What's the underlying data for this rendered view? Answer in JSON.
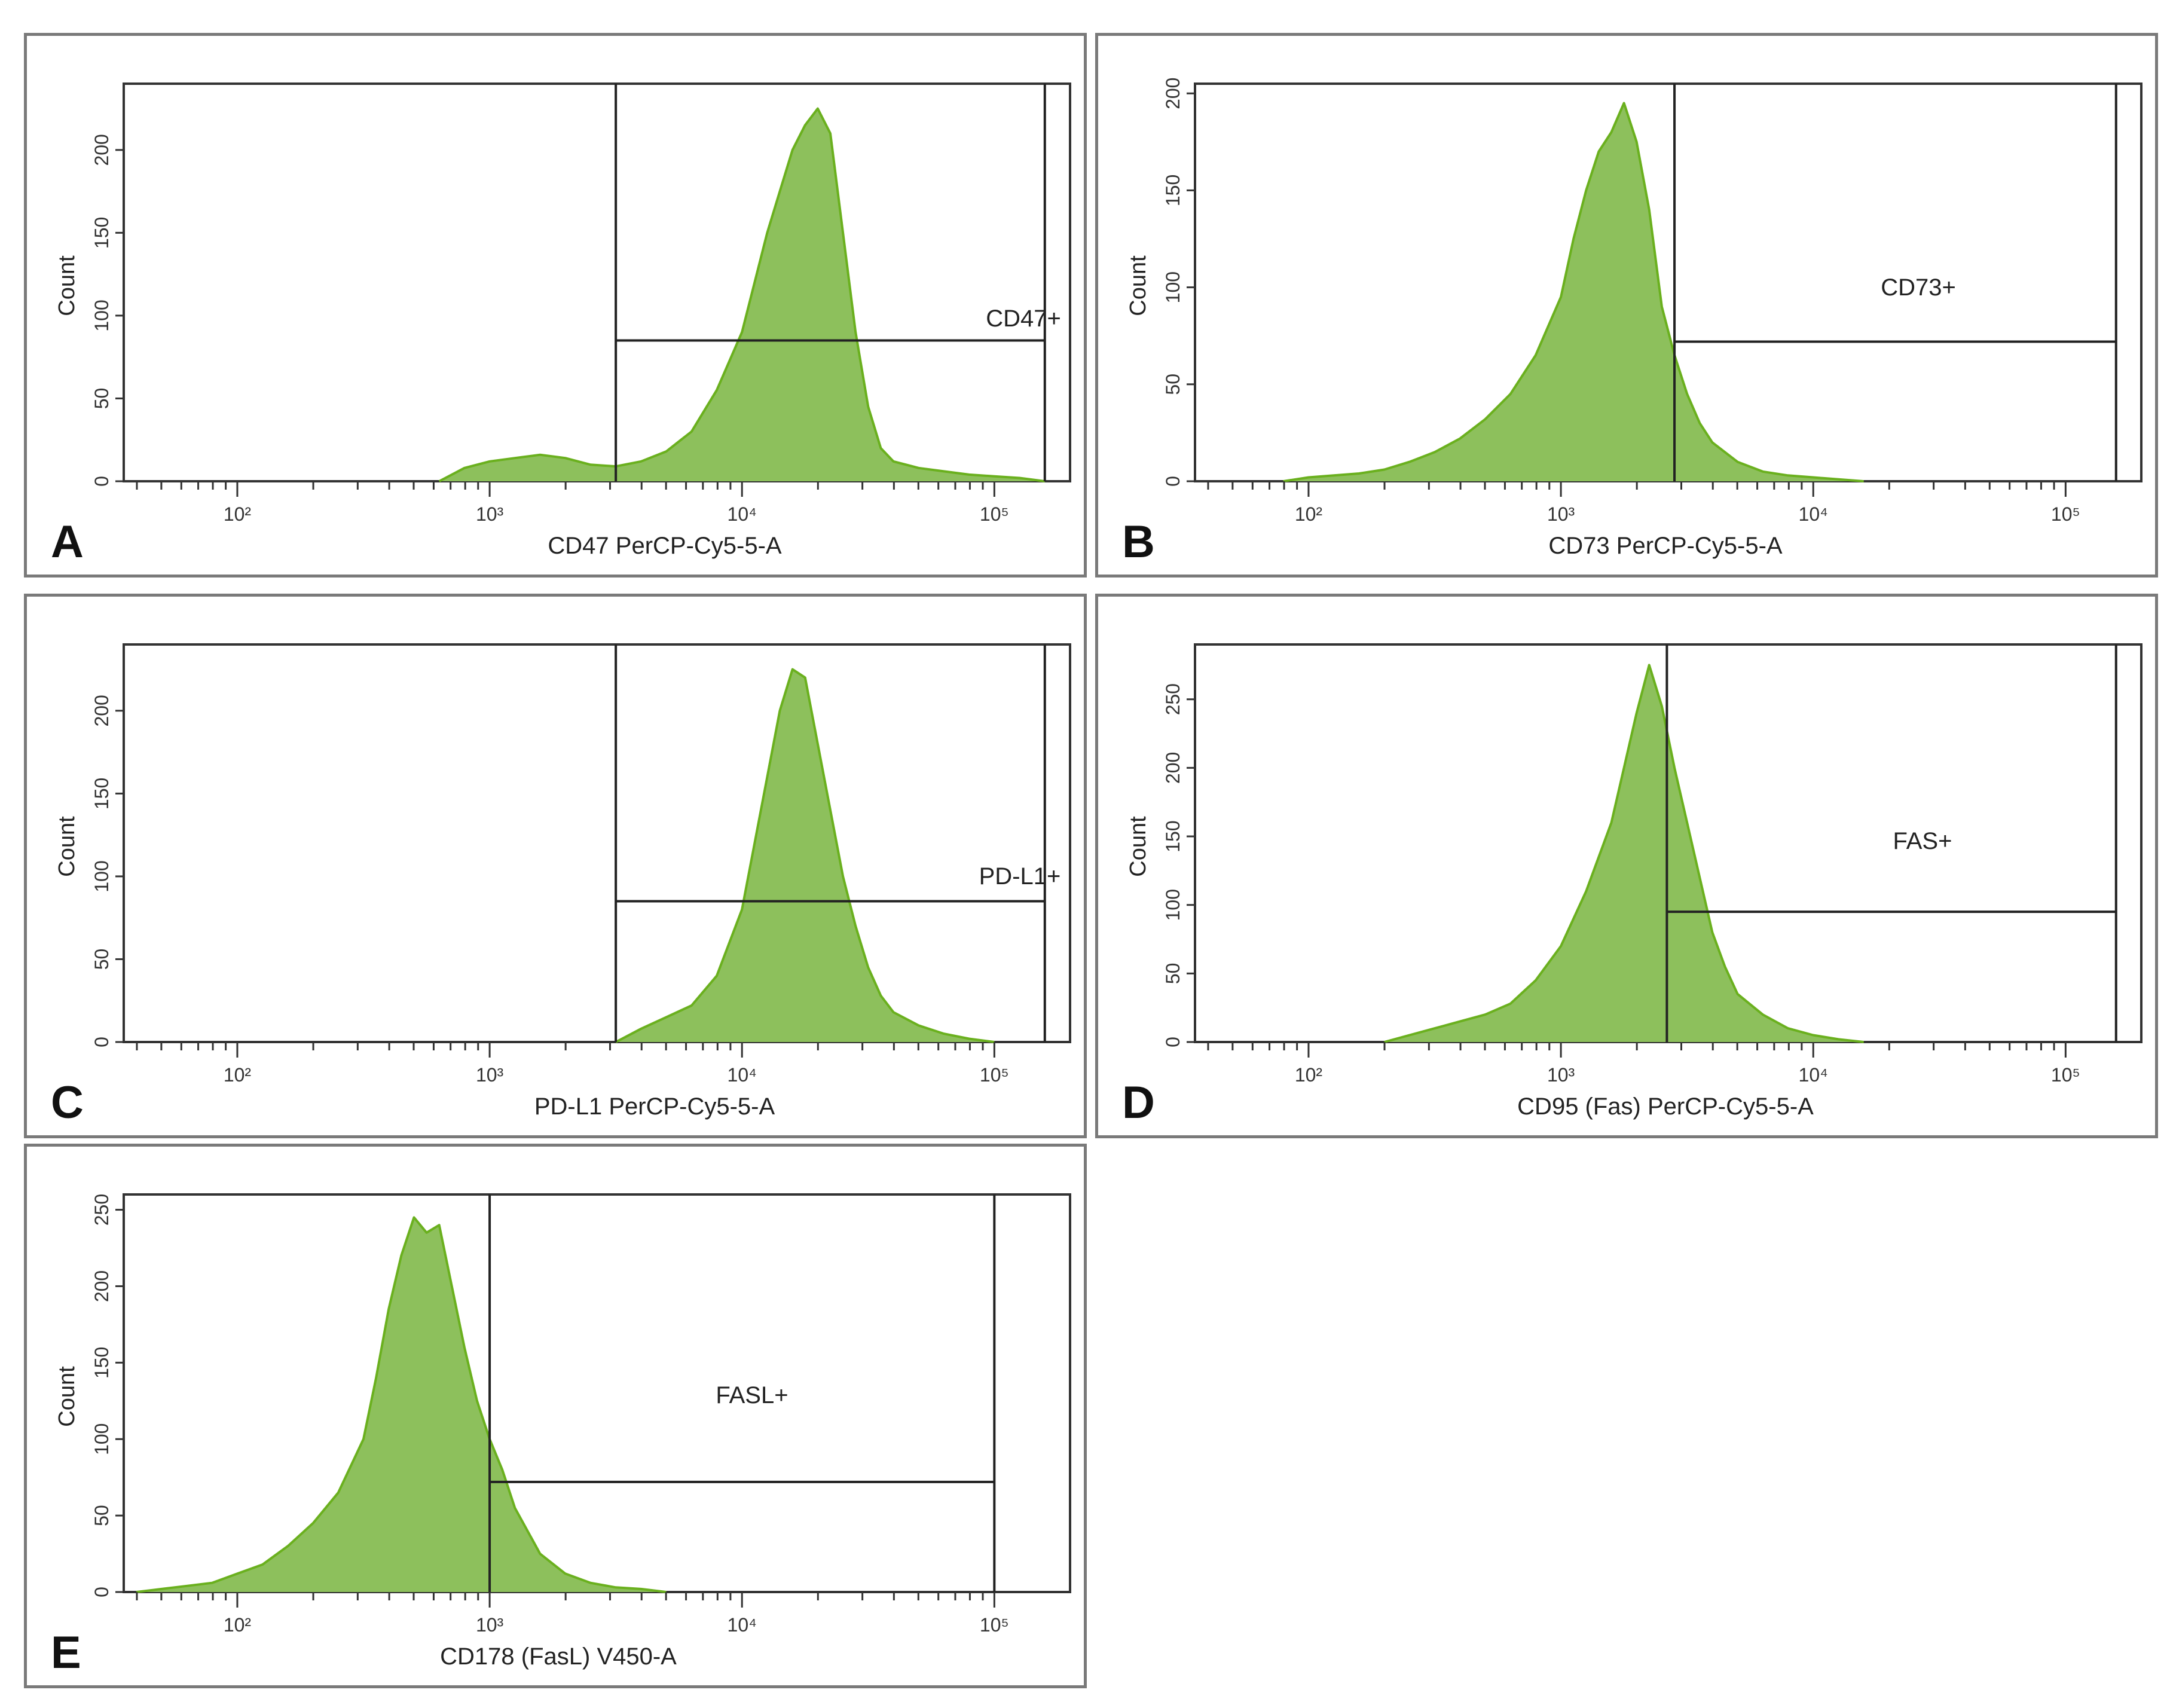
{
  "chart_data": [
    {
      "id": "A",
      "type": "area",
      "panel_label": "A",
      "title": "",
      "xlabel": "CD47 PerCP-Cy5-5-A",
      "ylabel": "Count",
      "x_scale": "log",
      "xlim_log10": [
        1.55,
        5.3
      ],
      "x_ticks": [
        {
          "label": "10²",
          "value": 100
        },
        {
          "label": "10³",
          "value": 1000
        },
        {
          "label": "10⁴",
          "value": 10000
        },
        {
          "label": "10⁵",
          "value": 100000
        }
      ],
      "ylim": [
        0,
        240
      ],
      "y_ticks": [
        0,
        50,
        100,
        150,
        200
      ],
      "fill_color": "#8dc05c",
      "line_color": "#6ab01e",
      "histogram": {
        "x": [
          2.8,
          2.9,
          3.0,
          3.1,
          3.2,
          3.3,
          3.4,
          3.5,
          3.6,
          3.7,
          3.8,
          3.9,
          4.0,
          4.05,
          4.1,
          4.15,
          4.2,
          4.25,
          4.3,
          4.35,
          4.4,
          4.45,
          4.5,
          4.55,
          4.6,
          4.7,
          4.8,
          4.9,
          5.0,
          5.1,
          5.2
        ],
        "count": [
          0,
          8,
          12,
          14,
          16,
          14,
          10,
          9,
          12,
          18,
          30,
          55,
          90,
          120,
          150,
          175,
          200,
          215,
          225,
          210,
          150,
          90,
          45,
          20,
          12,
          8,
          6,
          4,
          3,
          2,
          0
        ]
      },
      "gate": {
        "label": "CD47+",
        "x_start": 3.5,
        "x_end": 5.2,
        "y": 85
      }
    },
    {
      "id": "B",
      "type": "area",
      "panel_label": "B",
      "title": "",
      "xlabel": "CD73 PerCP-Cy5-5-A",
      "ylabel": "Count",
      "x_scale": "log",
      "xlim_log10": [
        1.55,
        5.3
      ],
      "x_ticks": [
        {
          "label": "10²",
          "value": 100
        },
        {
          "label": "10³",
          "value": 1000
        },
        {
          "label": "10⁴",
          "value": 10000
        },
        {
          "label": "10⁵",
          "value": 100000
        }
      ],
      "ylim": [
        0,
        205
      ],
      "y_ticks": [
        0,
        50,
        100,
        150,
        200
      ],
      "fill_color": "#8dc05c",
      "line_color": "#6ab01e",
      "histogram": {
        "x": [
          1.9,
          2.0,
          2.1,
          2.2,
          2.3,
          2.4,
          2.5,
          2.6,
          2.7,
          2.8,
          2.9,
          3.0,
          3.05,
          3.1,
          3.15,
          3.2,
          3.25,
          3.3,
          3.35,
          3.4,
          3.45,
          3.5,
          3.55,
          3.6,
          3.7,
          3.8,
          3.9,
          4.0,
          4.1,
          4.2
        ],
        "count": [
          0,
          2,
          3,
          4,
          6,
          10,
          15,
          22,
          32,
          45,
          65,
          95,
          125,
          150,
          170,
          180,
          195,
          175,
          140,
          90,
          65,
          45,
          30,
          20,
          10,
          5,
          3,
          2,
          1,
          0
        ]
      },
      "gate": {
        "label": "CD73+",
        "x_start": 3.45,
        "x_end": 5.2,
        "y": 72
      }
    },
    {
      "id": "C",
      "type": "area",
      "panel_label": "C",
      "title": "",
      "xlabel": "PD-L1  PerCP-Cy5-5-A",
      "ylabel": "Count",
      "x_scale": "log",
      "xlim_log10": [
        1.55,
        5.3
      ],
      "x_ticks": [
        {
          "label": "10²",
          "value": 100
        },
        {
          "label": "10³",
          "value": 1000
        },
        {
          "label": "10⁴",
          "value": 10000
        },
        {
          "label": "10⁵",
          "value": 100000
        }
      ],
      "ylim": [
        0,
        240
      ],
      "y_ticks": [
        0,
        50,
        100,
        150,
        200
      ],
      "fill_color": "#8dc05c",
      "line_color": "#6ab01e",
      "histogram": {
        "x": [
          3.5,
          3.6,
          3.7,
          3.8,
          3.9,
          4.0,
          4.05,
          4.1,
          4.15,
          4.2,
          4.25,
          4.3,
          4.35,
          4.4,
          4.45,
          4.5,
          4.55,
          4.6,
          4.7,
          4.8,
          4.9,
          5.0
        ],
        "count": [
          0,
          8,
          15,
          22,
          40,
          80,
          120,
          160,
          200,
          225,
          220,
          180,
          140,
          100,
          70,
          45,
          28,
          18,
          10,
          5,
          2,
          0
        ]
      },
      "gate": {
        "label": "PD-L1+",
        "x_start": 3.5,
        "x_end": 5.2,
        "y": 85
      }
    },
    {
      "id": "D",
      "type": "area",
      "panel_label": "D",
      "title": "",
      "xlabel": "CD95 (Fas) PerCP-Cy5-5-A",
      "ylabel": "Count",
      "x_scale": "log",
      "xlim_log10": [
        1.55,
        5.3
      ],
      "x_ticks": [
        {
          "label": "10²",
          "value": 100
        },
        {
          "label": "10³",
          "value": 1000
        },
        {
          "label": "10⁴",
          "value": 10000
        },
        {
          "label": "10⁵",
          "value": 100000
        }
      ],
      "ylim": [
        0,
        290
      ],
      "y_ticks": [
        0,
        50,
        100,
        150,
        200,
        250
      ],
      "fill_color": "#8dc05c",
      "line_color": "#6ab01e",
      "histogram": {
        "x": [
          2.3,
          2.4,
          2.5,
          2.6,
          2.7,
          2.8,
          2.9,
          3.0,
          3.1,
          3.2,
          3.25,
          3.3,
          3.35,
          3.4,
          3.45,
          3.5,
          3.55,
          3.6,
          3.65,
          3.7,
          3.8,
          3.9,
          4.0,
          4.1,
          4.2
        ],
        "count": [
          0,
          5,
          10,
          15,
          20,
          28,
          45,
          70,
          110,
          160,
          200,
          240,
          275,
          245,
          200,
          160,
          120,
          80,
          55,
          35,
          20,
          10,
          5,
          2,
          0
        ]
      },
      "gate": {
        "label": "FAS+",
        "x_start": 3.42,
        "x_end": 5.2,
        "y": 95
      }
    },
    {
      "id": "E",
      "type": "area",
      "panel_label": "E",
      "title": "",
      "xlabel": "CD178 (FasL) V450-A",
      "ylabel": "Count",
      "x_scale": "log",
      "xlim_log10": [
        1.55,
        5.3
      ],
      "x_ticks": [
        {
          "label": "10²",
          "value": 100
        },
        {
          "label": "10³",
          "value": 1000
        },
        {
          "label": "10⁴",
          "value": 10000
        },
        {
          "label": "10⁵",
          "value": 100000
        }
      ],
      "ylim": [
        0,
        260
      ],
      "y_ticks": [
        0,
        50,
        100,
        150,
        200,
        250
      ],
      "fill_color": "#8dc05c",
      "line_color": "#6ab01e",
      "histogram": {
        "x": [
          1.6,
          1.7,
          1.8,
          1.9,
          2.0,
          2.1,
          2.2,
          2.3,
          2.4,
          2.5,
          2.55,
          2.6,
          2.65,
          2.7,
          2.75,
          2.8,
          2.85,
          2.9,
          2.95,
          3.0,
          3.05,
          3.1,
          3.15,
          3.2,
          3.3,
          3.4,
          3.5,
          3.6,
          3.7
        ],
        "count": [
          0,
          2,
          4,
          6,
          12,
          18,
          30,
          45,
          65,
          100,
          140,
          185,
          220,
          245,
          235,
          240,
          200,
          160,
          125,
          100,
          80,
          55,
          40,
          25,
          12,
          6,
          3,
          2,
          0
        ]
      },
      "gate": {
        "label": "FASL+",
        "x_start": 3.0,
        "x_end": 5.0,
        "y": 72
      }
    }
  ]
}
